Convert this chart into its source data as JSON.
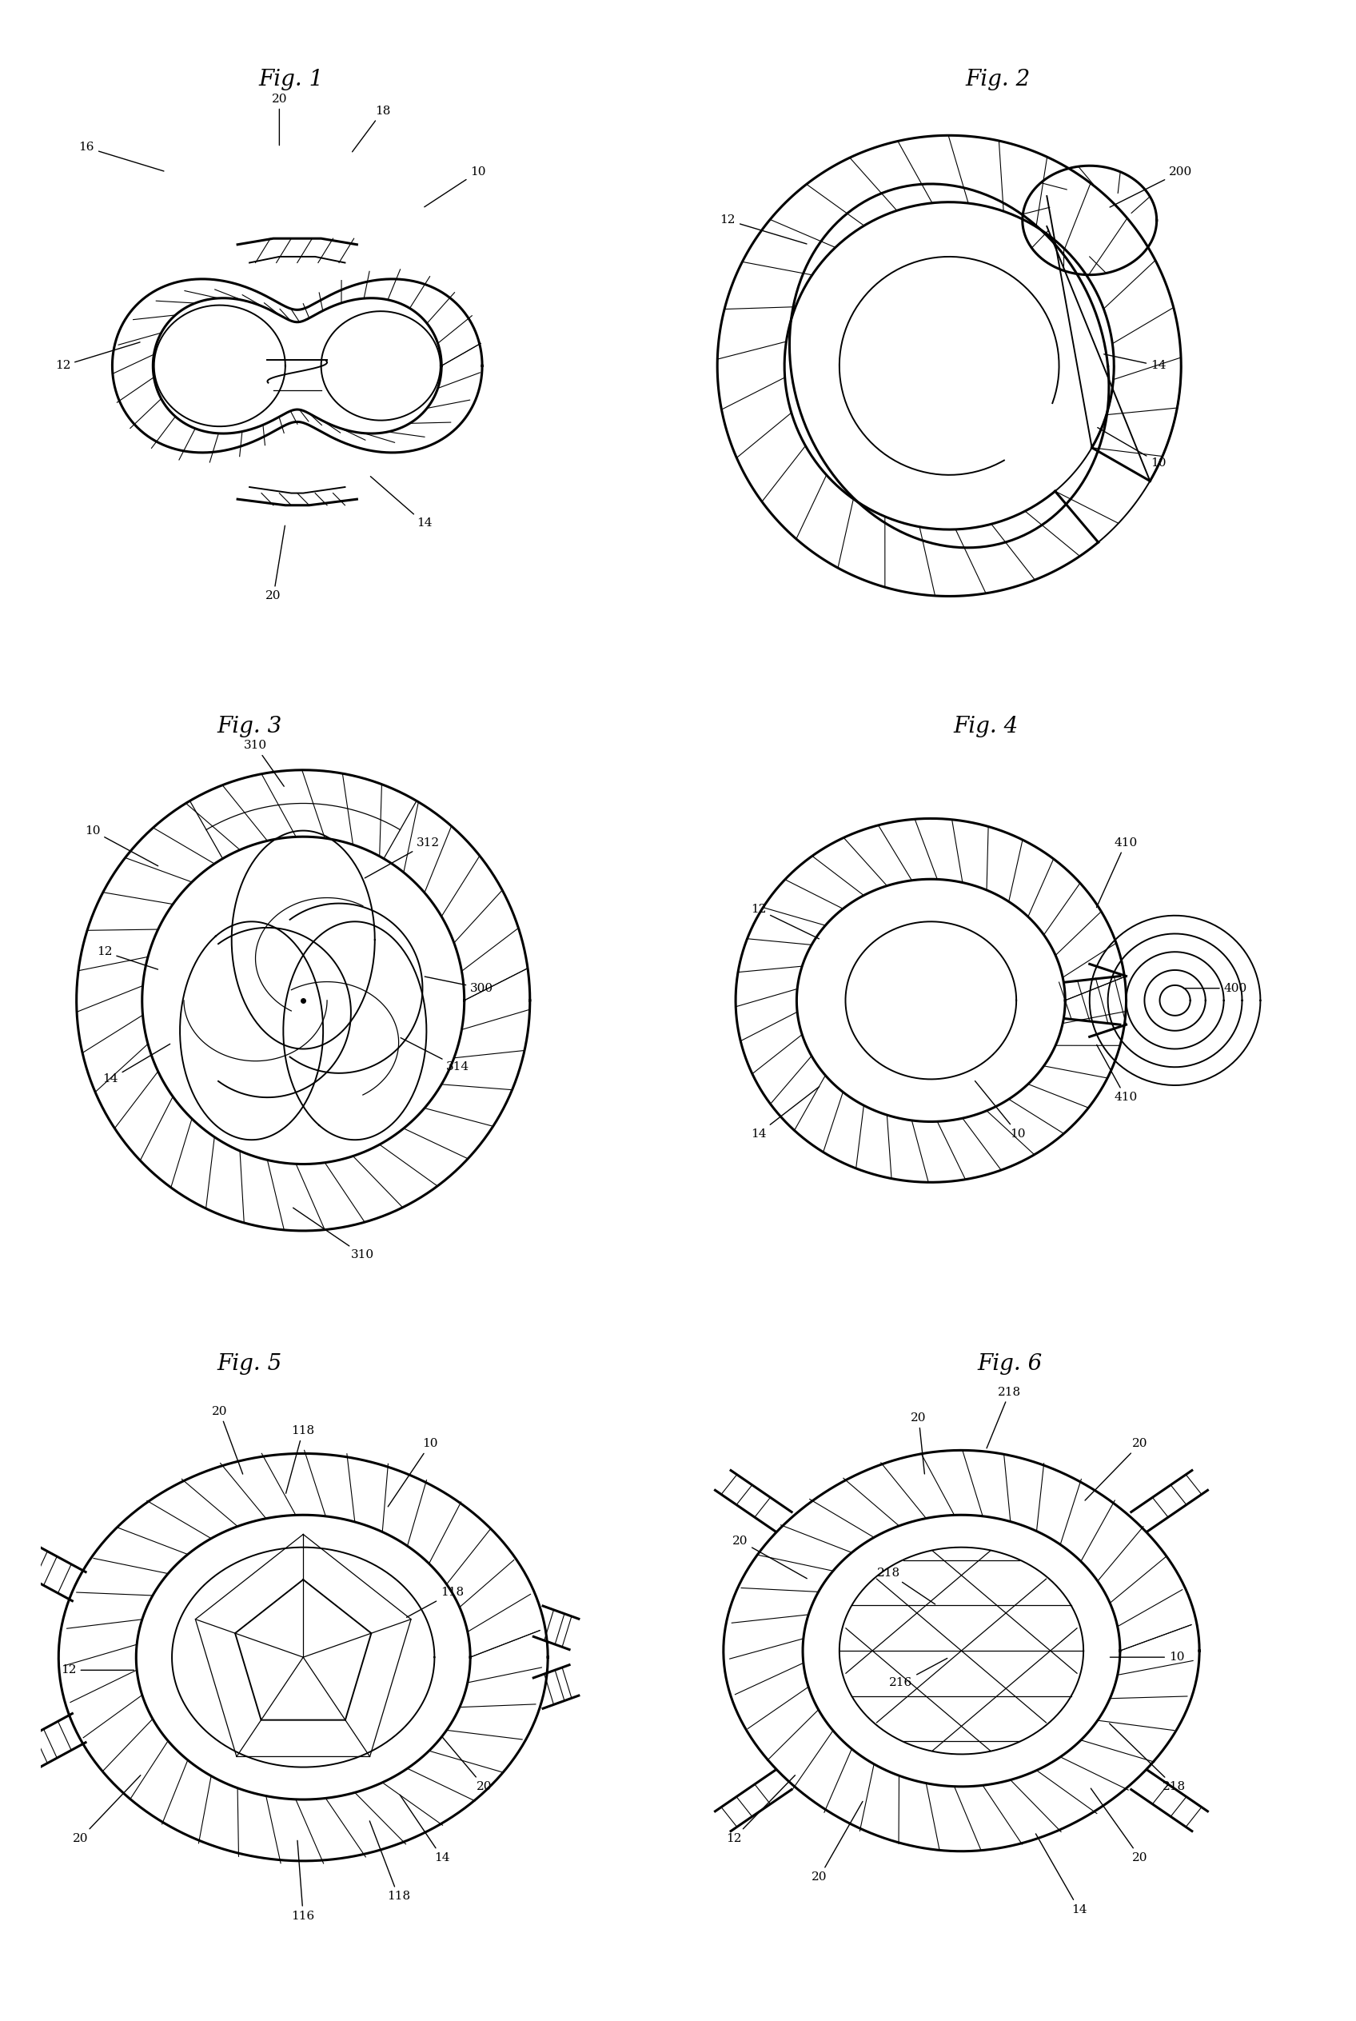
{
  "fig_titles": [
    "Fig. 1",
    "Fig. 2",
    "Fig. 3",
    "Fig. 4",
    "Fig. 5",
    "Fig. 6"
  ],
  "bg_color": "#ffffff",
  "line_color": "#000000",
  "title_fontsize": 20,
  "label_fontsize": 11.5,
  "font_family": "serif"
}
